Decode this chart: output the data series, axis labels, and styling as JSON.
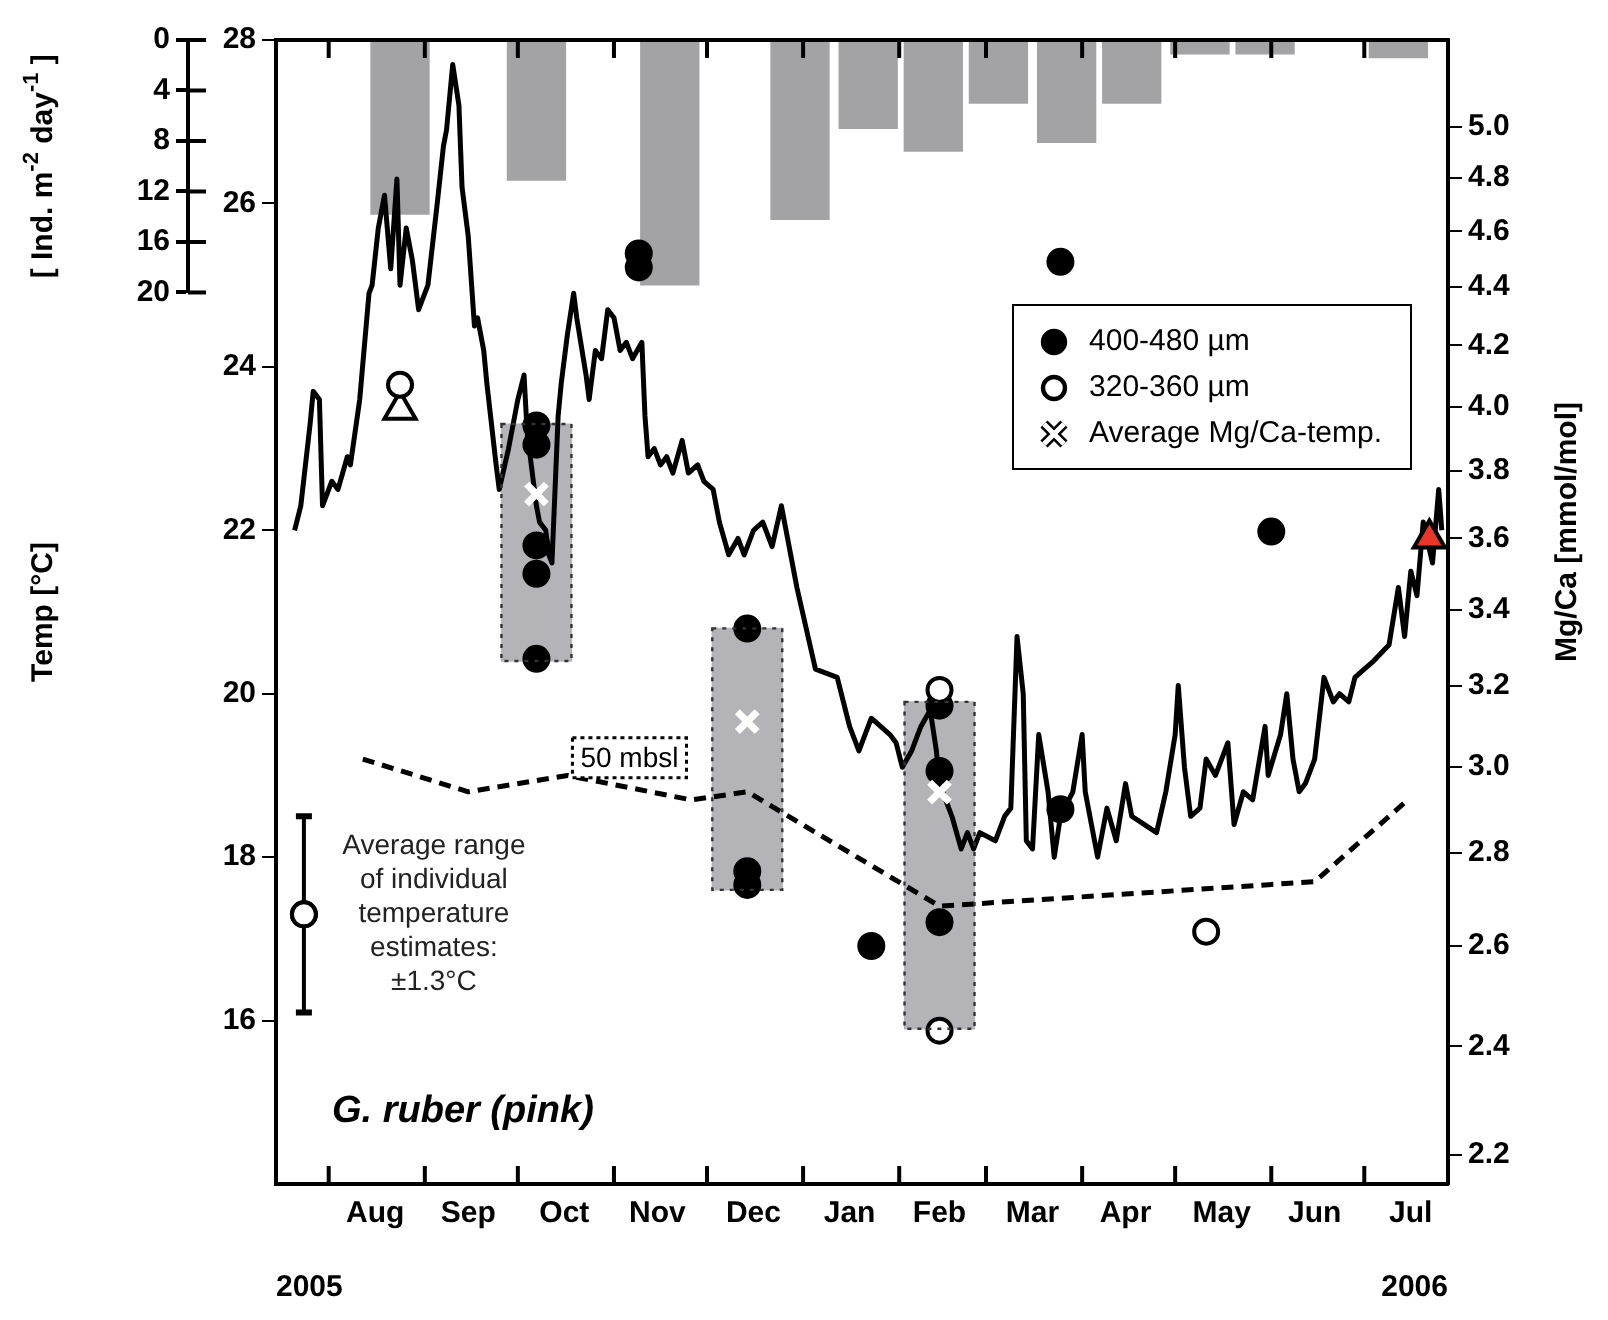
{
  "chart_data": {
    "type": "line",
    "title": "G. ruber (pink)",
    "ylabel": "Temp [°C]",
    "y2label": "Mg/Ca [mmol/mol]",
    "y3label": "[ Ind. m$^{-2}$ day$^{-1}$ ]",
    "annotations": [
      "Average range of individual temperature estimates: ±1.3°C",
      "2005",
      "2006"
    ],
    "xlim": [
      "2005-07-15",
      "2006-07-28"
    ],
    "xticks": [
      {
        "value": "2005-08-01",
        "label": null
      },
      {
        "value": "2005-08-16",
        "label": "Aug"
      },
      {
        "value": "2005-09-01",
        "label": null
      },
      {
        "value": "2005-09-15",
        "label": "Sep"
      },
      {
        "value": "2005-10-01",
        "label": null
      },
      {
        "value": "2005-10-16",
        "label": "Oct"
      },
      {
        "value": "2005-11-01",
        "label": null
      },
      {
        "value": "2005-11-15",
        "label": "Nov"
      },
      {
        "value": "2005-12-01",
        "label": null
      },
      {
        "value": "2005-12-16",
        "label": "Dec"
      },
      {
        "value": "2006-01-01",
        "label": null
      },
      {
        "value": "2006-01-16",
        "label": "Jan"
      },
      {
        "value": "2006-02-01",
        "label": null
      },
      {
        "value": "2006-02-14",
        "label": "Feb"
      },
      {
        "value": "2006-03-01",
        "label": null
      },
      {
        "value": "2006-03-16",
        "label": "Mar"
      },
      {
        "value": "2006-04-01",
        "label": null
      },
      {
        "value": "2006-04-15",
        "label": "Apr"
      },
      {
        "value": "2006-05-01",
        "label": null
      },
      {
        "value": "2006-05-16",
        "label": "May"
      },
      {
        "value": "2006-06-01",
        "label": null
      },
      {
        "value": "2006-06-15",
        "label": "Jun"
      },
      {
        "value": "2006-07-01",
        "label": null
      },
      {
        "value": "2006-07-16",
        "label": "Jul"
      }
    ],
    "ylim": [
      14,
      28
    ],
    "yticks": [
      16,
      18,
      20,
      22,
      24,
      26,
      28
    ],
    "y2lim": [
      2.15,
      5.36
    ],
    "y2ticks": [
      2.2,
      2.4,
      2.6,
      2.8,
      {
        "value": 3,
        "label": "3.0"
      },
      3.2,
      3.4,
      3.6,
      3.8,
      {
        "value": 4,
        "label": "4.0"
      },
      4.2,
      4.4,
      4.6,
      4.8,
      {
        "value": 5,
        "label": "5.0"
      }
    ],
    "y3lim": [
      20,
      0
    ],
    "y3ticks": [
      0,
      4,
      8,
      12,
      16,
      20
    ],
    "log": "y2",
    "legend": "top right",
    "series": [
      {
        "type": "bar",
        "x": [
          "2005-10-07",
          "2005-12-14",
          "2006-02-14"
        ],
        "base": [
          20.4,
          17.6,
          15.9
        ],
        "values": [
          2.9,
          3.2,
          4.0
        ],
        "color": "#b4b4b8",
        "line_style": "dotted"
      },
      {
        "type": "bar",
        "axis": "y3",
        "x": [
          "2005-08-24",
          "2005-10-07",
          "2005-11-19",
          "2005-12-31",
          "2006-01-22",
          "2006-02-12",
          "2006-03-05",
          "2006-03-27",
          "2006-04-17",
          "2006-05-09",
          "2006-05-30",
          "2006-07-12"
        ],
        "values": [
          13.8,
          11.1,
          19.4,
          14.2,
          7.0,
          8.8,
          5.0,
          8.1,
          5.0,
          1.1,
          1.1,
          1.4
        ],
        "color": "#a3a3a6"
      },
      {
        "name": "50 mbsl",
        "line_style": "dashed",
        "color": "#000000",
        "x": [
          "2005-08-12",
          "2005-09-15",
          "2005-10-17",
          "2005-11-26",
          "2005-12-14",
          "2006-02-14",
          "2006-06-15",
          "2006-07-15"
        ],
        "values": [
          19.2,
          18.8,
          19.0,
          18.7,
          18.8,
          17.4,
          17.7,
          18.7
        ]
      },
      {
        "color": "#000000",
        "x": [
          "2005-07-21",
          "2005-07-23",
          "2005-07-26",
          "2005-07-27",
          "2005-07-29",
          "2005-07-30",
          "2005-08-02",
          "2005-08-04",
          "2005-08-07",
          "2005-08-08",
          "2005-08-11",
          "2005-08-14",
          "2005-08-15",
          "2005-08-17",
          "2005-08-19",
          "2005-08-21",
          "2005-08-23",
          "2005-08-24",
          "2005-08-26",
          "2005-08-28",
          "2005-08-30",
          "2005-08-31",
          "2005-09-02",
          "2005-09-05",
          "2005-09-07",
          "2005-09-08",
          "2005-09-10",
          "2005-09-12",
          "2005-09-13",
          "2005-09-15",
          "2005-09-17",
          "2005-09-18",
          "2005-09-20",
          "2005-09-21",
          "2005-09-24",
          "2005-09-25",
          "2005-09-28",
          "2005-09-30",
          "2005-10-01",
          "2005-10-03",
          "2005-10-04",
          "2005-10-07",
          "2005-10-08",
          "2005-10-10",
          "2005-10-11",
          "2005-10-12",
          "2005-10-14",
          "2005-10-15",
          "2005-10-17",
          "2005-10-19",
          "2005-10-20",
          "2005-10-23",
          "2005-10-24",
          "2005-10-26",
          "2005-10-28",
          "2005-10-30",
          "2005-11-01",
          "2005-11-03",
          "2005-11-05",
          "2005-11-07",
          "2005-11-10",
          "2005-11-11",
          "2005-11-12",
          "2005-11-14",
          "2005-11-16",
          "2005-11-18",
          "2005-11-20",
          "2005-11-23",
          "2005-11-25",
          "2005-11-28",
          "2005-11-30",
          "2005-12-03",
          "2005-12-05",
          "2005-12-08",
          "2005-12-11",
          "2005-12-13",
          "2005-12-16",
          "2005-12-19",
          "2005-12-22",
          "2005-12-25",
          "2005-12-28",
          "2005-12-30",
          "2006-01-05",
          "2006-01-12",
          "2006-01-16",
          "2006-01-19",
          "2006-01-23",
          "2006-01-26",
          "2006-01-29",
          "2006-01-31",
          "2006-02-02",
          "2006-02-05",
          "2006-02-08",
          "2006-02-11",
          "2006-02-13",
          "2006-02-14",
          "2006-02-18",
          "2006-02-21",
          "2006-02-23",
          "2006-02-25",
          "2006-02-27",
          "2006-03-04",
          "2006-03-07",
          "2006-03-09",
          "2006-03-11",
          "2006-03-13",
          "2006-03-14",
          "2006-03-16",
          "2006-03-18",
          "2006-03-21",
          "2006-03-23",
          "2006-03-25",
          "2006-03-29",
          "2006-04-01",
          "2006-04-02",
          "2006-04-06",
          "2006-04-09",
          "2006-04-12",
          "2006-04-15",
          "2006-04-17",
          "2006-04-21",
          "2006-04-25",
          "2006-04-28",
          "2006-05-01",
          "2006-05-02",
          "2006-05-04",
          "2006-05-06",
          "2006-05-09",
          "2006-05-11",
          "2006-05-14",
          "2006-05-18",
          "2006-05-20",
          "2006-05-23",
          "2006-05-26",
          "2006-05-30",
          "2006-05-31",
          "2006-06-04",
          "2006-06-06",
          "2006-06-08",
          "2006-06-10",
          "2006-06-12",
          "2006-06-15",
          "2006-06-18",
          "2006-06-21",
          "2006-06-23",
          "2006-06-26",
          "2006-06-28",
          "2006-07-01",
          "2006-07-04",
          "2006-07-09",
          "2006-07-12",
          "2006-07-14",
          "2006-07-16",
          "2006-07-18",
          "2006-07-20",
          "2006-07-23",
          "2006-07-25",
          "2006-07-26"
        ],
        "values": [
          22.0,
          22.3,
          23.3,
          23.7,
          23.6,
          22.3,
          22.6,
          22.5,
          22.9,
          22.8,
          23.6,
          24.9,
          25.0,
          25.7,
          26.1,
          25.2,
          26.3,
          25.0,
          25.7,
          25.3,
          24.7,
          24.8,
          25.0,
          26.0,
          26.7,
          26.9,
          27.7,
          27.2,
          26.2,
          25.6,
          24.5,
          24.6,
          24.2,
          23.8,
          22.8,
          22.5,
          23.0,
          23.4,
          23.6,
          23.9,
          23.2,
          22.3,
          22.1,
          22.0,
          21.7,
          21.6,
          23.4,
          23.8,
          24.4,
          24.9,
          24.6,
          23.9,
          23.6,
          24.2,
          24.1,
          24.7,
          24.6,
          24.2,
          24.3,
          24.1,
          24.3,
          23.4,
          22.9,
          23.0,
          22.8,
          22.9,
          22.7,
          23.1,
          22.7,
          22.8,
          22.6,
          22.5,
          22.1,
          21.7,
          21.9,
          21.7,
          22.0,
          22.1,
          21.8,
          22.3,
          21.7,
          21.3,
          20.3,
          20.2,
          19.6,
          19.3,
          19.7,
          19.6,
          19.5,
          19.4,
          19.1,
          19.3,
          19.6,
          19.8,
          19.3,
          18.9,
          18.5,
          18.1,
          18.3,
          18.1,
          18.3,
          18.2,
          18.5,
          18.6,
          20.7,
          20.0,
          18.2,
          18.1,
          19.5,
          18.8,
          18.0,
          18.5,
          18.8,
          19.5,
          18.8,
          18.0,
          18.6,
          18.2,
          18.9,
          18.5,
          18.4,
          18.3,
          18.8,
          19.5,
          20.1,
          19.1,
          18.5,
          18.6,
          19.2,
          19.0,
          19.4,
          18.4,
          18.8,
          18.7,
          19.6,
          19.0,
          19.5,
          20.0,
          19.2,
          18.8,
          18.9,
          19.2,
          20.2,
          19.9,
          20.0,
          19.9,
          20.2,
          20.3,
          20.4,
          20.6,
          21.3,
          20.7,
          21.5,
          21.2,
          22.1,
          21.6,
          22.5,
          22.0
        ]
      },
      {
        "type": "scatter",
        "color": "#ffffff",
        "marker": "circle",
        "x": [
          "2005-07-24"
        ],
        "values": [
          17.3
        ],
        "errors": [
          1.2
        ]
      },
      {
        "type": "scatter",
        "axis": "y2",
        "color": "#ffffff",
        "marker": "triangle",
        "x": [
          "2005-08-24"
        ],
        "values": [
          3.99
        ]
      },
      {
        "type": "scatter",
        "axis": "y2",
        "color": "#e8362a",
        "marker": "triangle",
        "x": [
          "2006-07-22"
        ],
        "values": [
          3.6
        ]
      },
      {
        "type": "scatter",
        "axis": "y2",
        "name": "400-480 µm",
        "color": "#000000",
        "marker": "circle",
        "x": [
          "2005-10-07",
          "2005-10-07",
          "2005-10-07",
          "2005-10-07",
          "2005-10-07",
          "2005-11-09",
          "2005-11-09",
          "2005-12-14",
          "2005-12-14",
          "2005-12-14",
          "2006-01-23",
          "2006-02-14",
          "2006-02-14",
          "2006-02-14",
          "2006-03-25",
          "2006-03-25",
          "2006-06-01"
        ],
        "values": [
          3.94,
          3.88,
          3.58,
          3.5,
          3.27,
          4.52,
          4.47,
          3.35,
          2.76,
          2.73,
          2.6,
          3.15,
          2.99,
          2.65,
          4.49,
          2.9,
          3.62
        ]
      },
      {
        "type": "scatter",
        "axis": "y2",
        "name": "320-360 µm",
        "color": "#ffffff",
        "marker": "circle",
        "x": [
          "2005-08-24",
          "2006-02-14",
          "2006-02-14",
          "2006-05-11"
        ],
        "values": [
          4.07,
          3.19,
          2.43,
          2.63
        ]
      },
      {
        "type": "scatter",
        "axis": "y2",
        "name": "Average Mg/Ca-temp.",
        "color": "#ffffff",
        "marker": "cross",
        "x": [
          "2005-10-07",
          "2005-12-14",
          "2006-02-14"
        ],
        "values": [
          3.73,
          3.11,
          2.94
        ]
      }
    ]
  }
}
